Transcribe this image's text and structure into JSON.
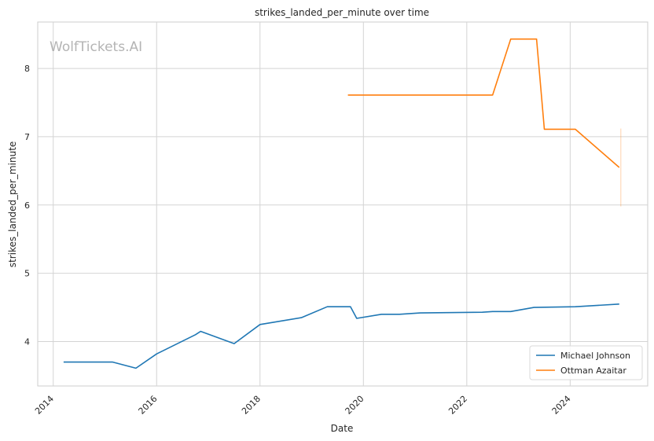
{
  "chart_data": {
    "type": "line",
    "title": "strikes_landed_per_minute over time",
    "xlabel": "Date",
    "ylabel": "strikes_landed_per_minute",
    "watermark": "WolfTickets.AI",
    "xlim": [
      2013.7,
      2025.5
    ],
    "ylim": [
      3.35,
      8.68
    ],
    "x_ticks": [
      2014,
      2016,
      2018,
      2020,
      2022,
      2024
    ],
    "y_ticks": [
      4,
      5,
      6,
      7,
      8
    ],
    "grid": true,
    "legend_position": "lower-right",
    "series": [
      {
        "name": "Michael Johnson",
        "color": "#1f77b4",
        "x": [
          2014.2,
          2015.15,
          2015.6,
          2016.0,
          2016.75,
          2016.85,
          2017.5,
          2018.0,
          2018.8,
          2019.3,
          2019.75,
          2019.87,
          2020.35,
          2020.7,
          2021.1,
          2022.3,
          2022.5,
          2022.85,
          2023.3,
          2024.1,
          2024.95
        ],
        "values": [
          3.7,
          3.7,
          3.61,
          3.82,
          4.1,
          4.15,
          3.97,
          4.25,
          4.35,
          4.51,
          4.51,
          4.34,
          4.4,
          4.4,
          4.42,
          4.43,
          4.44,
          4.44,
          4.5,
          4.51,
          4.55
        ]
      },
      {
        "name": "Ottman Azaitar",
        "color": "#ff7f0e",
        "x": [
          2019.7,
          2022.5,
          2022.85,
          2023.35,
          2023.5,
          2024.1,
          2024.95
        ],
        "values": [
          7.61,
          7.61,
          8.43,
          8.43,
          7.11,
          7.11,
          6.55
        ]
      }
    ]
  }
}
